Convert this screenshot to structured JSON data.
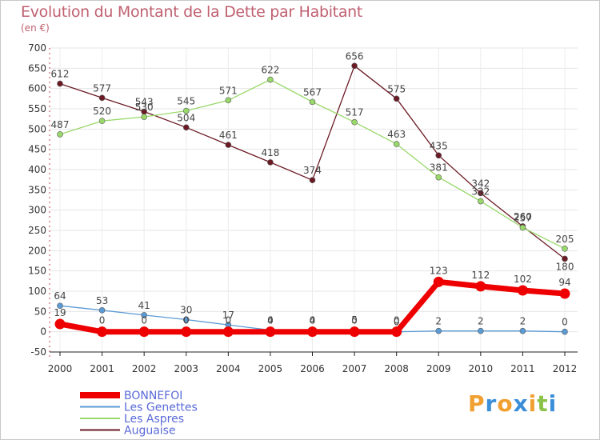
{
  "title": "Evolution du Montant de la Dette par Habitant",
  "unit": "(en €)",
  "logo": [
    "P",
    "r",
    "o",
    "x",
    "i",
    "t",
    "i"
  ],
  "logo_colors": [
    "#f0a030",
    "#3a8fd8",
    "#f0a030",
    "#3a8fd8",
    "#f0a030",
    "#8bc34a",
    "#3a8fd8"
  ],
  "chart_data": {
    "type": "line",
    "title": "Evolution du Montant de la Dette par Habitant",
    "ylabel": "(en €)",
    "xlabel": "",
    "x": [
      "2000",
      "2001",
      "2002",
      "2003",
      "2004",
      "2005",
      "2006",
      "2007",
      "2008",
      "2009",
      "2010",
      "2011",
      "2012"
    ],
    "ylim": [
      -50,
      700
    ],
    "yticks": [
      "-50",
      "0",
      "50",
      "100",
      "150",
      "200",
      "250",
      "300",
      "350",
      "400",
      "450",
      "500",
      "550",
      "600",
      "650",
      "700"
    ],
    "grid": true,
    "legend_position": "bottom-left",
    "series": [
      {
        "name": "Auguaise",
        "color": "#6b1a24",
        "values": [
          612,
          577,
          543,
          504,
          461,
          418,
          374,
          656,
          575,
          435,
          342,
          260,
          180
        ],
        "labels": [
          "612",
          "577",
          "543",
          "504",
          "461",
          "418",
          "374",
          "656",
          "575",
          "435",
          "342",
          "260",
          "180"
        ],
        "connected": [
          true,
          true,
          true,
          true,
          true,
          true,
          true,
          true,
          true,
          true,
          true,
          true,
          true
        ]
      },
      {
        "name": "Les Aspres",
        "color": "#99d86a",
        "values": [
          487,
          520,
          530,
          545,
          571,
          622,
          567,
          517,
          463,
          381,
          322,
          257,
          205
        ],
        "labels": [
          "487",
          "520",
          "530",
          "545",
          "571",
          "622",
          "567",
          "517",
          "463",
          "381",
          "322",
          "257",
          "205"
        ]
      },
      {
        "name": "Les Genettes",
        "color": "#5b9bd5",
        "values": [
          64,
          53,
          41,
          30,
          17,
          4,
          4,
          5,
          0,
          2,
          2,
          2,
          0
        ],
        "labels": [
          "64",
          "53",
          "41",
          "30",
          "17",
          "4",
          "4",
          "5",
          "0",
          "2",
          "2",
          "2",
          "0"
        ]
      },
      {
        "name": "BONNEFOI",
        "color": "#ee0000",
        "values": [
          19,
          0,
          0,
          0,
          0,
          0,
          0,
          0,
          0,
          123,
          112,
          102,
          94
        ],
        "labels": [
          "19",
          "0",
          "0",
          "0",
          "0",
          "0",
          "0",
          "0",
          "0",
          "123",
          "112",
          "102",
          "94"
        ]
      }
    ],
    "legend": [
      "BONNEFOI",
      "Les Genettes",
      "Les Aspres",
      "Auguaise"
    ]
  }
}
